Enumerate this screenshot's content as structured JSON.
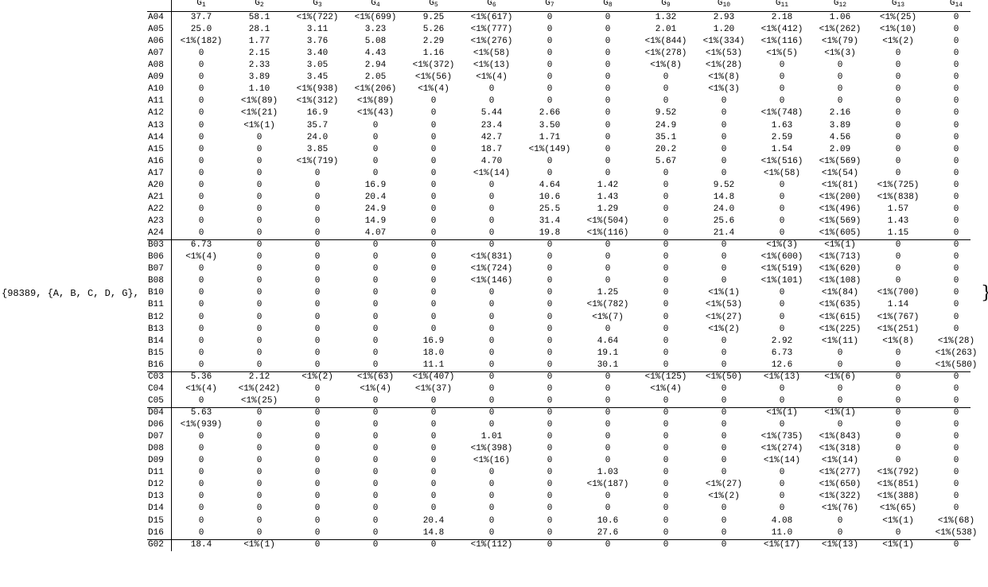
{
  "prefix": "{98389, {A, B, C, D, G},",
  "suffix": "}",
  "table": {
    "columns": [
      {
        "name": "G",
        "sub": "1"
      },
      {
        "name": "G",
        "sub": "2"
      },
      {
        "name": "G",
        "sub": "3"
      },
      {
        "name": "G",
        "sub": "4"
      },
      {
        "name": "G",
        "sub": "5"
      },
      {
        "name": "G",
        "sub": "6"
      },
      {
        "name": "G",
        "sub": "7"
      },
      {
        "name": "G",
        "sub": "8"
      },
      {
        "name": "G",
        "sub": "9"
      },
      {
        "name": "G",
        "sub": "10"
      },
      {
        "name": "G",
        "sub": "11"
      },
      {
        "name": "G",
        "sub": "12"
      },
      {
        "name": "G",
        "sub": "13"
      },
      {
        "name": "G",
        "sub": "14"
      }
    ],
    "groups": [
      {
        "rows": [
          {
            "label": "A04",
            "cells": [
              "37.7",
              "58.1",
              "<1%(722)",
              "<1%(699)",
              "9.25",
              "<1%(617)",
              "0",
              "0",
              "1.32",
              "2.93",
              "2.18",
              "1.06",
              "<1%(25)",
              "0"
            ]
          },
          {
            "label": "A05",
            "cells": [
              "25.0",
              "28.1",
              "3.11",
              "3.23",
              "5.26",
              "<1%(777)",
              "0",
              "0",
              "2.01",
              "1.20",
              "<1%(412)",
              "<1%(262)",
              "<1%(10)",
              "0"
            ]
          },
          {
            "label": "A06",
            "cells": [
              "<1%(182)",
              "1.77",
              "3.76",
              "5.08",
              "2.29",
              "<1%(276)",
              "0",
              "0",
              "<1%(844)",
              "<1%(334)",
              "<1%(116)",
              "<1%(79)",
              "<1%(2)",
              "0"
            ]
          },
          {
            "label": "A07",
            "cells": [
              "0",
              "2.15",
              "3.40",
              "4.43",
              "1.16",
              "<1%(58)",
              "0",
              "0",
              "<1%(278)",
              "<1%(53)",
              "<1%(5)",
              "<1%(3)",
              "0",
              "0"
            ]
          },
          {
            "label": "A08",
            "cells": [
              "0",
              "2.33",
              "3.05",
              "2.94",
              "<1%(372)",
              "<1%(13)",
              "0",
              "0",
              "<1%(8)",
              "<1%(28)",
              "0",
              "0",
              "0",
              "0"
            ]
          },
          {
            "label": "A09",
            "cells": [
              "0",
              "3.89",
              "3.45",
              "2.05",
              "<1%(56)",
              "<1%(4)",
              "0",
              "0",
              "0",
              "<1%(8)",
              "0",
              "0",
              "0",
              "0"
            ]
          },
          {
            "label": "A10",
            "cells": [
              "0",
              "1.10",
              "<1%(938)",
              "<1%(206)",
              "<1%(4)",
              "0",
              "0",
              "0",
              "0",
              "<1%(3)",
              "0",
              "0",
              "0",
              "0"
            ]
          },
          {
            "label": "A11",
            "cells": [
              "0",
              "<1%(89)",
              "<1%(312)",
              "<1%(89)",
              "0",
              "0",
              "0",
              "0",
              "0",
              "0",
              "0",
              "0",
              "0",
              "0"
            ]
          },
          {
            "label": "A12",
            "cells": [
              "0",
              "<1%(21)",
              "16.9",
              "<1%(43)",
              "0",
              "5.44",
              "2.66",
              "0",
              "9.52",
              "0",
              "<1%(748)",
              "2.16",
              "0",
              "0"
            ]
          },
          {
            "label": "A13",
            "cells": [
              "0",
              "<1%(1)",
              "35.7",
              "0",
              "0",
              "23.4",
              "3.50",
              "0",
              "24.9",
              "0",
              "1.63",
              "3.89",
              "0",
              "0"
            ]
          },
          {
            "label": "A14",
            "cells": [
              "0",
              "0",
              "24.0",
              "0",
              "0",
              "42.7",
              "1.71",
              "0",
              "35.1",
              "0",
              "2.59",
              "4.56",
              "0",
              "0"
            ]
          },
          {
            "label": "A15",
            "cells": [
              "0",
              "0",
              "3.85",
              "0",
              "0",
              "18.7",
              "<1%(149)",
              "0",
              "20.2",
              "0",
              "1.54",
              "2.09",
              "0",
              "0"
            ]
          },
          {
            "label": "A16",
            "cells": [
              "0",
              "0",
              "<1%(719)",
              "0",
              "0",
              "4.70",
              "0",
              "0",
              "5.67",
              "0",
              "<1%(516)",
              "<1%(569)",
              "0",
              "0"
            ]
          },
          {
            "label": "A17",
            "cells": [
              "0",
              "0",
              "0",
              "0",
              "0",
              "<1%(14)",
              "0",
              "0",
              "0",
              "0",
              "<1%(58)",
              "<1%(54)",
              "0",
              "0"
            ]
          },
          {
            "label": "A20",
            "cells": [
              "0",
              "0",
              "0",
              "16.9",
              "0",
              "0",
              "4.64",
              "1.42",
              "0",
              "9.52",
              "0",
              "<1%(81)",
              "<1%(725)",
              "0"
            ]
          },
          {
            "label": "A21",
            "cells": [
              "0",
              "0",
              "0",
              "20.4",
              "0",
              "0",
              "10.6",
              "1.43",
              "0",
              "14.8",
              "0",
              "<1%(200)",
              "<1%(838)",
              "0"
            ]
          },
          {
            "label": "A22",
            "cells": [
              "0",
              "0",
              "0",
              "24.9",
              "0",
              "0",
              "25.5",
              "1.29",
              "0",
              "24.0",
              "0",
              "<1%(496)",
              "1.57",
              "0"
            ]
          },
          {
            "label": "A23",
            "cells": [
              "0",
              "0",
              "0",
              "14.9",
              "0",
              "0",
              "31.4",
              "<1%(504)",
              "0",
              "25.6",
              "0",
              "<1%(569)",
              "1.43",
              "0"
            ]
          },
          {
            "label": "A24",
            "cells": [
              "0",
              "0",
              "0",
              "4.07",
              "0",
              "0",
              "19.8",
              "<1%(116)",
              "0",
              "21.4",
              "0",
              "<1%(605)",
              "1.15",
              "0"
            ]
          }
        ]
      },
      {
        "rows": [
          {
            "label": "B03",
            "cells": [
              "6.73",
              "0",
              "0",
              "0",
              "0",
              "0",
              "0",
              "0",
              "0",
              "0",
              "<1%(3)",
              "<1%(1)",
              "0",
              "0"
            ]
          },
          {
            "label": "B06",
            "cells": [
              "<1%(4)",
              "0",
              "0",
              "0",
              "0",
              "<1%(831)",
              "0",
              "0",
              "0",
              "0",
              "<1%(600)",
              "<1%(713)",
              "0",
              "0"
            ]
          },
          {
            "label": "B07",
            "cells": [
              "0",
              "0",
              "0",
              "0",
              "0",
              "<1%(724)",
              "0",
              "0",
              "0",
              "0",
              "<1%(519)",
              "<1%(620)",
              "0",
              "0"
            ]
          },
          {
            "label": "B08",
            "cells": [
              "0",
              "0",
              "0",
              "0",
              "0",
              "<1%(146)",
              "0",
              "0",
              "0",
              "0",
              "<1%(101)",
              "<1%(108)",
              "0",
              "0"
            ]
          },
          {
            "label": "B10",
            "cells": [
              "0",
              "0",
              "0",
              "0",
              "0",
              "0",
              "0",
              "1.25",
              "0",
              "<1%(1)",
              "0",
              "<1%(84)",
              "<1%(700)",
              "0"
            ]
          },
          {
            "label": "B11",
            "cells": [
              "0",
              "0",
              "0",
              "0",
              "0",
              "0",
              "0",
              "<1%(782)",
              "0",
              "<1%(53)",
              "0",
              "<1%(635)",
              "1.14",
              "0"
            ]
          },
          {
            "label": "B12",
            "cells": [
              "0",
              "0",
              "0",
              "0",
              "0",
              "0",
              "0",
              "<1%(7)",
              "0",
              "<1%(27)",
              "0",
              "<1%(615)",
              "<1%(767)",
              "0"
            ]
          },
          {
            "label": "B13",
            "cells": [
              "0",
              "0",
              "0",
              "0",
              "0",
              "0",
              "0",
              "0",
              "0",
              "<1%(2)",
              "0",
              "<1%(225)",
              "<1%(251)",
              "0"
            ]
          },
          {
            "label": "B14",
            "cells": [
              "0",
              "0",
              "0",
              "0",
              "16.9",
              "0",
              "0",
              "4.64",
              "0",
              "0",
              "2.92",
              "<1%(11)",
              "<1%(8)",
              "<1%(28)"
            ]
          },
          {
            "label": "B15",
            "cells": [
              "0",
              "0",
              "0",
              "0",
              "18.0",
              "0",
              "0",
              "19.1",
              "0",
              "0",
              "6.73",
              "0",
              "0",
              "<1%(263)"
            ]
          },
          {
            "label": "B16",
            "cells": [
              "0",
              "0",
              "0",
              "0",
              "11.1",
              "0",
              "0",
              "30.1",
              "0",
              "0",
              "12.6",
              "0",
              "0",
              "<1%(580)"
            ]
          }
        ]
      },
      {
        "rows": [
          {
            "label": "C03",
            "cells": [
              "5.36",
              "2.12",
              "<1%(2)",
              "<1%(63)",
              "<1%(407)",
              "0",
              "0",
              "0",
              "<1%(125)",
              "<1%(50)",
              "<1%(13)",
              "<1%(6)",
              "0",
              "0"
            ]
          },
          {
            "label": "C04",
            "cells": [
              "<1%(4)",
              "<1%(242)",
              "0",
              "<1%(4)",
              "<1%(37)",
              "0",
              "0",
              "0",
              "<1%(4)",
              "0",
              "0",
              "0",
              "0",
              "0"
            ]
          },
          {
            "label": "C05",
            "cells": [
              "0",
              "<1%(25)",
              "0",
              "0",
              "0",
              "0",
              "0",
              "0",
              "0",
              "0",
              "0",
              "0",
              "0",
              "0"
            ]
          }
        ]
      },
      {
        "rows": [
          {
            "label": "D04",
            "cells": [
              "5.63",
              "0",
              "0",
              "0",
              "0",
              "0",
              "0",
              "0",
              "0",
              "0",
              "<1%(1)",
              "<1%(1)",
              "0",
              "0"
            ]
          },
          {
            "label": "D06",
            "cells": [
              "<1%(939)",
              "0",
              "0",
              "0",
              "0",
              "0",
              "0",
              "0",
              "0",
              "0",
              "0",
              "0",
              "0",
              "0"
            ]
          },
          {
            "label": "D07",
            "cells": [
              "0",
              "0",
              "0",
              "0",
              "0",
              "1.01",
              "0",
              "0",
              "0",
              "0",
              "<1%(735)",
              "<1%(843)",
              "0",
              "0"
            ]
          },
          {
            "label": "D08",
            "cells": [
              "0",
              "0",
              "0",
              "0",
              "0",
              "<1%(398)",
              "0",
              "0",
              "0",
              "0",
              "<1%(274)",
              "<1%(318)",
              "0",
              "0"
            ]
          },
          {
            "label": "D09",
            "cells": [
              "0",
              "0",
              "0",
              "0",
              "0",
              "<1%(16)",
              "0",
              "0",
              "0",
              "0",
              "<1%(14)",
              "<1%(14)",
              "0",
              "0"
            ]
          },
          {
            "label": "D11",
            "cells": [
              "0",
              "0",
              "0",
              "0",
              "0",
              "0",
              "0",
              "1.03",
              "0",
              "0",
              "0",
              "<1%(277)",
              "<1%(792)",
              "0"
            ]
          },
          {
            "label": "D12",
            "cells": [
              "0",
              "0",
              "0",
              "0",
              "0",
              "0",
              "0",
              "<1%(187)",
              "0",
              "<1%(27)",
              "0",
              "<1%(650)",
              "<1%(851)",
              "0"
            ]
          },
          {
            "label": "D13",
            "cells": [
              "0",
              "0",
              "0",
              "0",
              "0",
              "0",
              "0",
              "0",
              "0",
              "<1%(2)",
              "0",
              "<1%(322)",
              "<1%(388)",
              "0"
            ]
          },
          {
            "label": "D14",
            "cells": [
              "0",
              "0",
              "0",
              "0",
              "0",
              "0",
              "0",
              "0",
              "0",
              "0",
              "0",
              "<1%(76)",
              "<1%(65)",
              "0"
            ]
          },
          {
            "label": "D15",
            "cells": [
              "0",
              "0",
              "0",
              "0",
              "20.4",
              "0",
              "0",
              "10.6",
              "0",
              "0",
              "4.08",
              "0",
              "<1%(1)",
              "<1%(68)"
            ]
          },
          {
            "label": "D16",
            "cells": [
              "0",
              "0",
              "0",
              "0",
              "14.8",
              "0",
              "0",
              "27.6",
              "0",
              "0",
              "11.0",
              "0",
              "0",
              "<1%(538)"
            ]
          }
        ]
      },
      {
        "rows": [
          {
            "label": "G02",
            "cells": [
              "18.4",
              "<1%(1)",
              "0",
              "0",
              "0",
              "<1%(112)",
              "0",
              "0",
              "0",
              "0",
              "<1%(17)",
              "<1%(13)",
              "<1%(1)",
              "0"
            ]
          }
        ]
      }
    ]
  }
}
